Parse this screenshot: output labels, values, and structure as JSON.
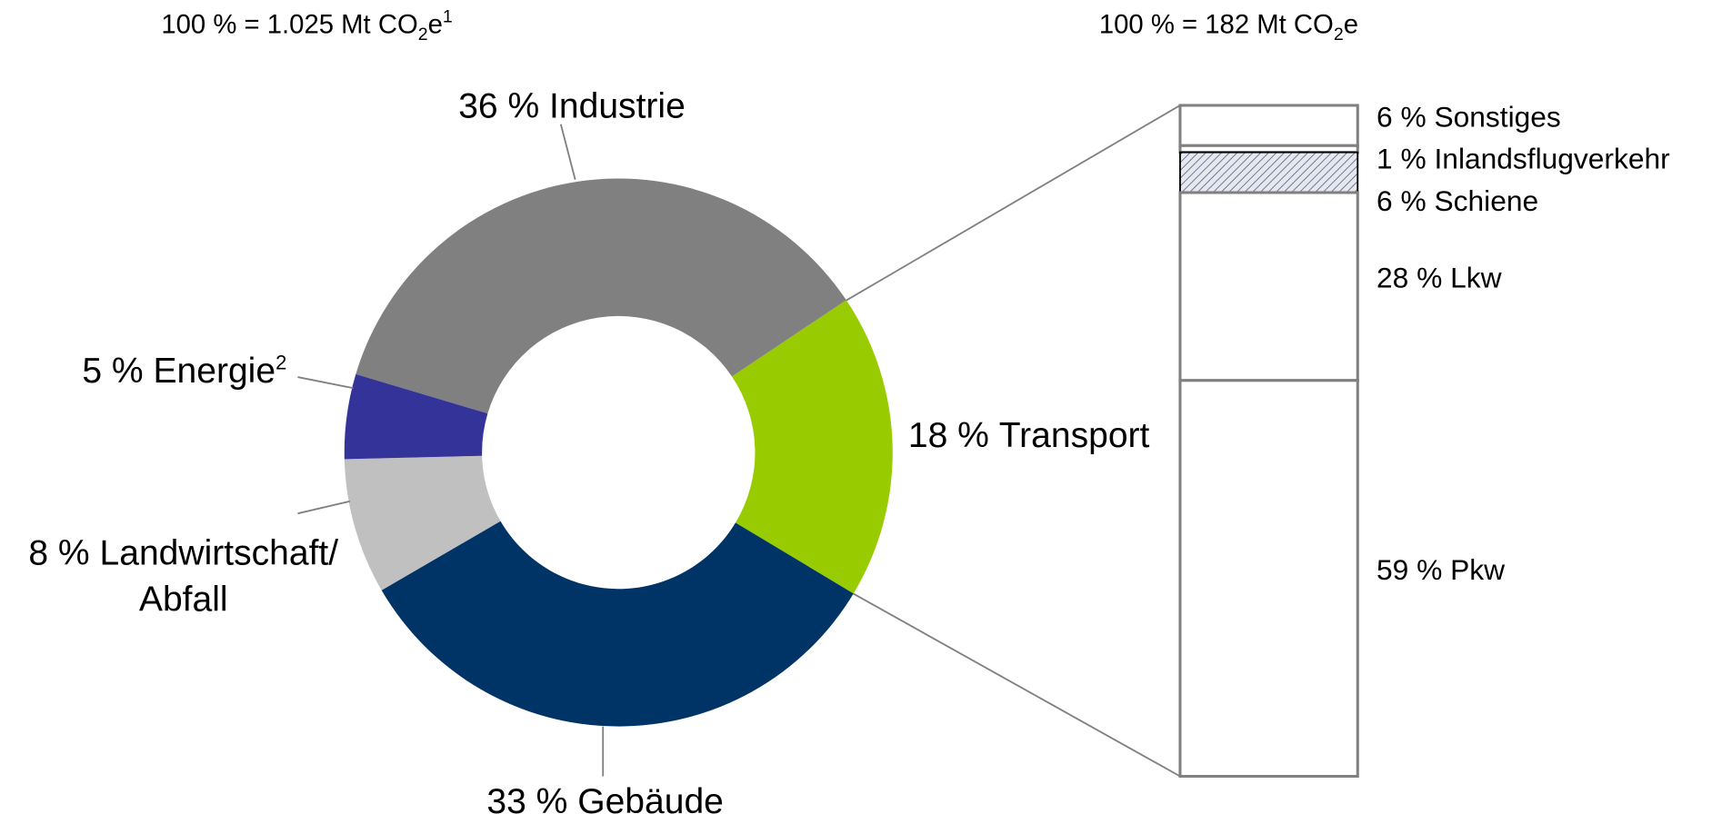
{
  "chart_data": [
    {
      "type": "pie",
      "total_label": {
        "text": "100 % = 1.025 Mt CO",
        "sub": "2",
        "after": "e",
        "sup": "1"
      },
      "categories": [
        "Industrie",
        "Transport",
        "Gebäude",
        "Landwirtschaft/Abfall",
        "Energie"
      ],
      "values": [
        36,
        18,
        33,
        8,
        5
      ],
      "value_labels": [
        "36 %",
        "18 %",
        "33 %",
        "8 %",
        "5 %"
      ],
      "superscripts": [
        null,
        null,
        null,
        null,
        "2"
      ],
      "colors": [
        "#808080",
        "#99cc00",
        "#003366",
        "#c0c0c0",
        "#333399"
      ]
    },
    {
      "type": "bar",
      "total_label": {
        "text": "100 % = 182 Mt CO",
        "sub": "2",
        "after": "e"
      },
      "categories": [
        "Sonstiges",
        "Inlandsflugverkehr",
        "Schiene",
        "Lkw",
        "Pkw"
      ],
      "values": [
        6,
        1,
        6,
        28,
        59
      ],
      "value_labels": [
        "6 %",
        "1 %",
        "6 %",
        "28 %",
        "59 %"
      ],
      "hatched": [
        false,
        false,
        true,
        false,
        false
      ],
      "color": "#ffffff"
    }
  ]
}
